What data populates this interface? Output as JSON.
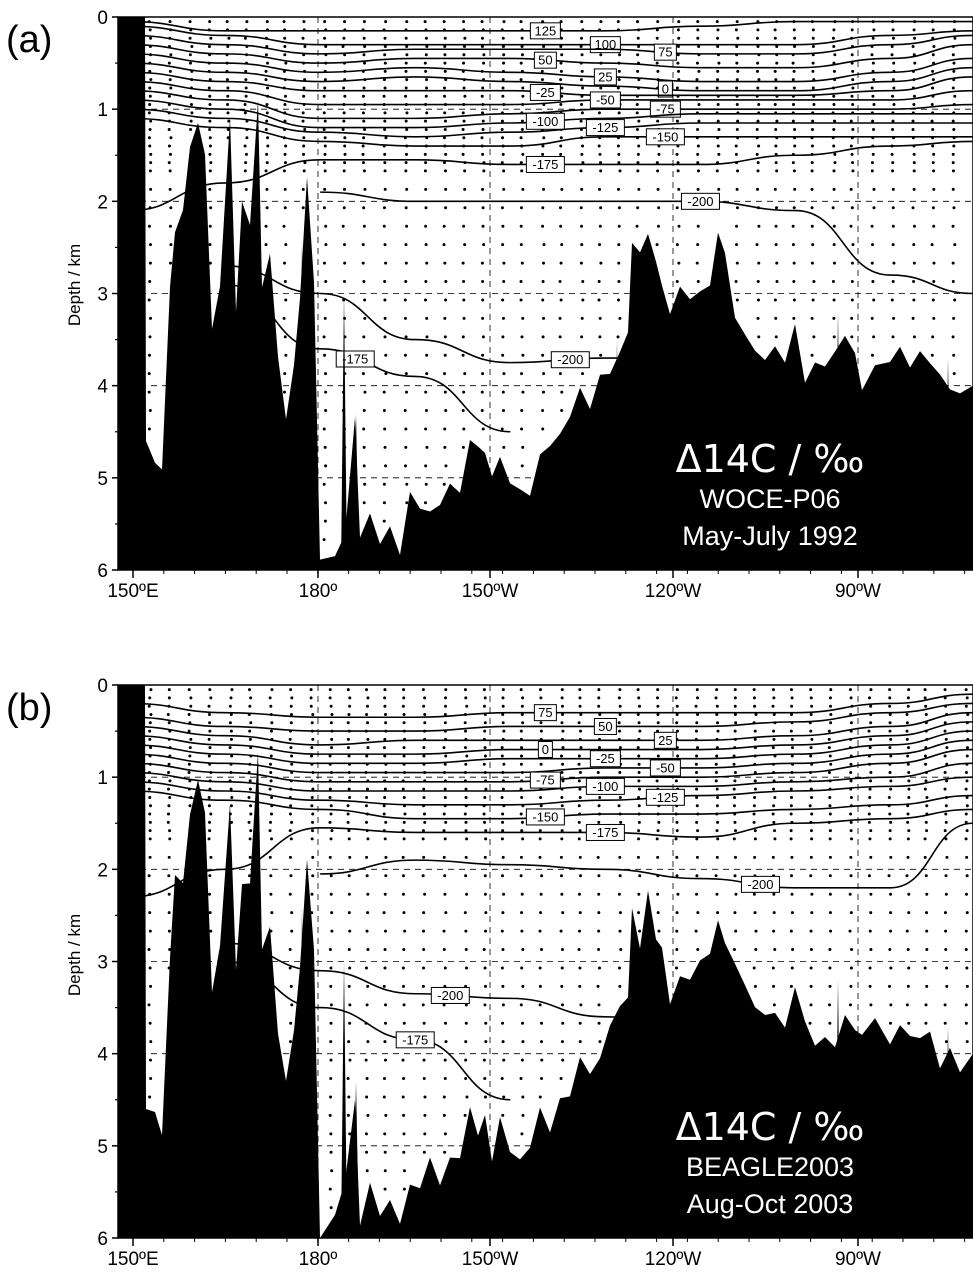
{
  "chart_data": [
    {
      "type": "contour",
      "panel_label": "(a)",
      "ylabel": "Depth / km",
      "yticks": [
        "0",
        "1",
        "2",
        "3",
        "4",
        "5",
        "6"
      ],
      "xticks": [
        "150ºE",
        "180º",
        "150ºW",
        "120ºW",
        "90ºW"
      ],
      "ylim": [
        6,
        0
      ],
      "xlim_lon_east": [
        150,
        283
      ],
      "annotation": {
        "title": "Δ14C / ‰",
        "line1": "WOCE-P06",
        "line2": "May-July 1992"
      },
      "contours": [
        {
          "level": "125",
          "depth_km": [
            0.05,
            0.15,
            0.15,
            0.15,
            0.15,
            0.15,
            0.1,
            0.05,
            0.05,
            0.05
          ]
        },
        {
          "level": "100",
          "depth_km": [
            0.1,
            0.2,
            0.3,
            0.3,
            0.3,
            0.3,
            0.3,
            0.3,
            0.2,
            0.15
          ]
        },
        {
          "level": "75",
          "depth_km": [
            0.2,
            0.3,
            0.4,
            0.35,
            0.35,
            0.35,
            0.4,
            0.4,
            0.3,
            0.2
          ]
        },
        {
          "level": "50",
          "depth_km": [
            0.3,
            0.4,
            0.5,
            0.45,
            0.45,
            0.5,
            0.55,
            0.55,
            0.45,
            0.3
          ]
        },
        {
          "level": "25",
          "depth_km": [
            0.4,
            0.5,
            0.6,
            0.55,
            0.6,
            0.65,
            0.7,
            0.7,
            0.6,
            0.45
          ]
        },
        {
          "level": "0",
          "depth_km": [
            0.5,
            0.6,
            0.7,
            0.65,
            0.7,
            0.75,
            0.8,
            0.8,
            0.7,
            0.55
          ]
        },
        {
          "level": "-25",
          "depth_km": [
            0.6,
            0.7,
            0.8,
            0.8,
            0.8,
            0.85,
            0.85,
            0.85,
            0.8,
            0.65
          ]
        },
        {
          "level": "-50",
          "depth_km": [
            0.7,
            0.8,
            0.95,
            0.95,
            0.95,
            0.9,
            0.9,
            0.9,
            0.9,
            0.8
          ]
        },
        {
          "level": "-75",
          "depth_km": [
            0.8,
            0.9,
            1.1,
            1.1,
            1.05,
            1.0,
            1.0,
            1.0,
            1.0,
            0.95
          ]
        },
        {
          "level": "-100",
          "depth_km": [
            0.9,
            1.0,
            1.2,
            1.2,
            1.15,
            1.1,
            1.05,
            1.05,
            1.05,
            1.05
          ]
        },
        {
          "level": "-125",
          "depth_km": [
            1.0,
            1.1,
            1.25,
            1.3,
            1.25,
            1.2,
            1.15,
            1.15,
            1.15,
            1.15
          ]
        },
        {
          "level": "-150",
          "depth_km": [
            1.1,
            1.2,
            1.35,
            1.4,
            1.4,
            1.3,
            1.3,
            1.3,
            1.3,
            1.3
          ]
        },
        {
          "level": "-175",
          "depth_km": [
            2.1,
            1.8,
            1.55,
            1.55,
            1.6,
            1.6,
            1.6,
            1.5,
            1.4,
            1.35
          ]
        },
        {
          "level": "-200",
          "depth_km": [
            null,
            null,
            1.9,
            2.0,
            2.0,
            2.0,
            2.0,
            2.1,
            2.8,
            3.0
          ]
        },
        {
          "level": "-200",
          "depth_km": [
            null,
            2.7,
            3.0,
            3.5,
            3.75,
            3.7,
            3.7,
            null,
            null,
            null
          ]
        },
        {
          "level": "-175",
          "depth_km": [
            null,
            2.9,
            3.6,
            3.9,
            4.5,
            null,
            null,
            null,
            null,
            null
          ]
        }
      ],
      "contour_x_lon_east": [
        150,
        165,
        180,
        195,
        210,
        225,
        240,
        255,
        270,
        283
      ]
    },
    {
      "type": "contour",
      "panel_label": "(b)",
      "ylabel": "Depth / km",
      "yticks": [
        "0",
        "1",
        "2",
        "3",
        "4",
        "5",
        "6"
      ],
      "xticks": [
        "150ºE",
        "180º",
        "150ºW",
        "120ºW",
        "90ºW"
      ],
      "ylim": [
        6,
        0
      ],
      "xlim_lon_east": [
        150,
        283
      ],
      "annotation": {
        "title": "Δ14C / ‰",
        "line1": "BEAGLE2003",
        "line2": "Aug-Oct 2003"
      },
      "contours": [
        {
          "level": "75",
          "depth_km": [
            0.2,
            0.3,
            0.35,
            0.35,
            0.3,
            0.3,
            0.3,
            0.3,
            0.2,
            0.1
          ]
        },
        {
          "level": "50",
          "depth_km": [
            0.35,
            0.45,
            0.5,
            0.5,
            0.45,
            0.45,
            0.45,
            0.4,
            0.3,
            0.2
          ]
        },
        {
          "level": "25",
          "depth_km": [
            0.45,
            0.55,
            0.65,
            0.6,
            0.6,
            0.6,
            0.6,
            0.55,
            0.45,
            0.3
          ]
        },
        {
          "level": "0",
          "depth_km": [
            0.55,
            0.65,
            0.75,
            0.75,
            0.7,
            0.7,
            0.7,
            0.65,
            0.55,
            0.4
          ]
        },
        {
          "level": "-25",
          "depth_km": [
            0.65,
            0.75,
            0.85,
            0.85,
            0.8,
            0.8,
            0.8,
            0.75,
            0.65,
            0.5
          ]
        },
        {
          "level": "-50",
          "depth_km": [
            0.75,
            0.85,
            0.95,
            0.95,
            0.95,
            0.9,
            0.9,
            0.85,
            0.75,
            0.6
          ]
        },
        {
          "level": "-75",
          "depth_km": [
            0.85,
            0.95,
            1.05,
            1.05,
            1.05,
            1.0,
            1.0,
            0.95,
            0.85,
            0.7
          ]
        },
        {
          "level": "-100",
          "depth_km": [
            0.95,
            1.05,
            1.15,
            1.15,
            1.15,
            1.1,
            1.1,
            1.05,
            1.0,
            0.85
          ]
        },
        {
          "level": "-125",
          "depth_km": [
            1.05,
            1.15,
            1.25,
            1.3,
            1.3,
            1.25,
            1.2,
            1.15,
            1.1,
            1.0
          ]
        },
        {
          "level": "-150",
          "depth_km": [
            1.15,
            1.25,
            1.35,
            1.45,
            1.45,
            1.4,
            1.4,
            1.35,
            1.3,
            1.2
          ]
        },
        {
          "level": "-175",
          "depth_km": [
            2.3,
            2.0,
            1.55,
            1.6,
            1.6,
            1.6,
            1.65,
            1.5,
            1.45,
            1.35
          ]
        },
        {
          "level": "-200",
          "depth_km": [
            null,
            null,
            2.05,
            1.9,
            1.95,
            2.0,
            2.1,
            2.2,
            2.2,
            1.5
          ]
        },
        {
          "level": "-200",
          "depth_km": [
            null,
            2.8,
            3.1,
            3.35,
            3.4,
            3.6,
            3.8,
            null,
            null,
            null
          ]
        },
        {
          "level": "-175",
          "depth_km": [
            null,
            3.0,
            3.5,
            3.85,
            4.5,
            null,
            null,
            null,
            null,
            null
          ]
        }
      ],
      "contour_x_lon_east": [
        150,
        165,
        180,
        195,
        210,
        225,
        240,
        255,
        270,
        283
      ]
    }
  ]
}
